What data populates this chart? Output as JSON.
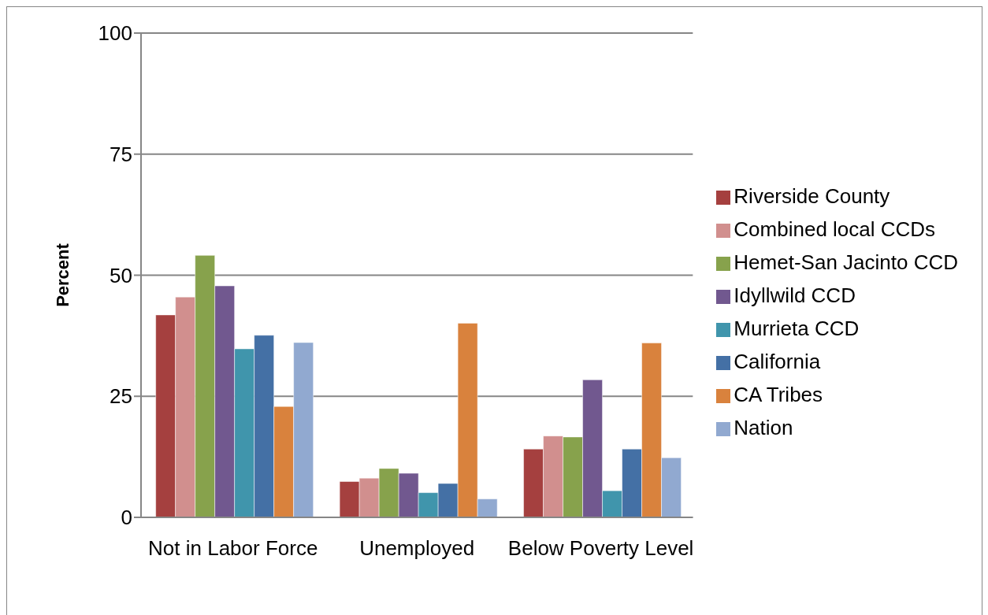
{
  "chart_data": {
    "type": "bar",
    "ylabel": "Percent",
    "categories": [
      "Not in Labor Force",
      "Unemployed",
      "Below Poverty Level"
    ],
    "series": [
      {
        "name": "Riverside County",
        "color": "#a5403f",
        "values": [
          41.8,
          7.4,
          14.1
        ]
      },
      {
        "name": "Combined local CCDs",
        "color": "#d18f8e",
        "values": [
          45.5,
          8.1,
          16.8
        ]
      },
      {
        "name": "Hemet-San Jacinto CCD",
        "color": "#87a24c",
        "values": [
          54.1,
          10.1,
          16.6
        ]
      },
      {
        "name": "Idyllwild CCD",
        "color": "#71588f",
        "values": [
          47.8,
          9.1,
          28.4
        ]
      },
      {
        "name": "Murrieta CCD",
        "color": "#4095ac",
        "values": [
          34.8,
          5.1,
          5.5
        ]
      },
      {
        "name": "California",
        "color": "#4470a5",
        "values": [
          37.6,
          7.0,
          14.1
        ]
      },
      {
        "name": "CA Tribes",
        "color": "#d9823d",
        "values": [
          22.9,
          40.1,
          36.0
        ]
      },
      {
        "name": "Nation",
        "color": "#91a9d0",
        "values": [
          36.1,
          3.8,
          12.3
        ]
      }
    ],
    "ylim": [
      0,
      100
    ],
    "yticks": [
      0,
      25,
      50,
      75,
      100
    ],
    "grid": "y",
    "legend": "right"
  }
}
